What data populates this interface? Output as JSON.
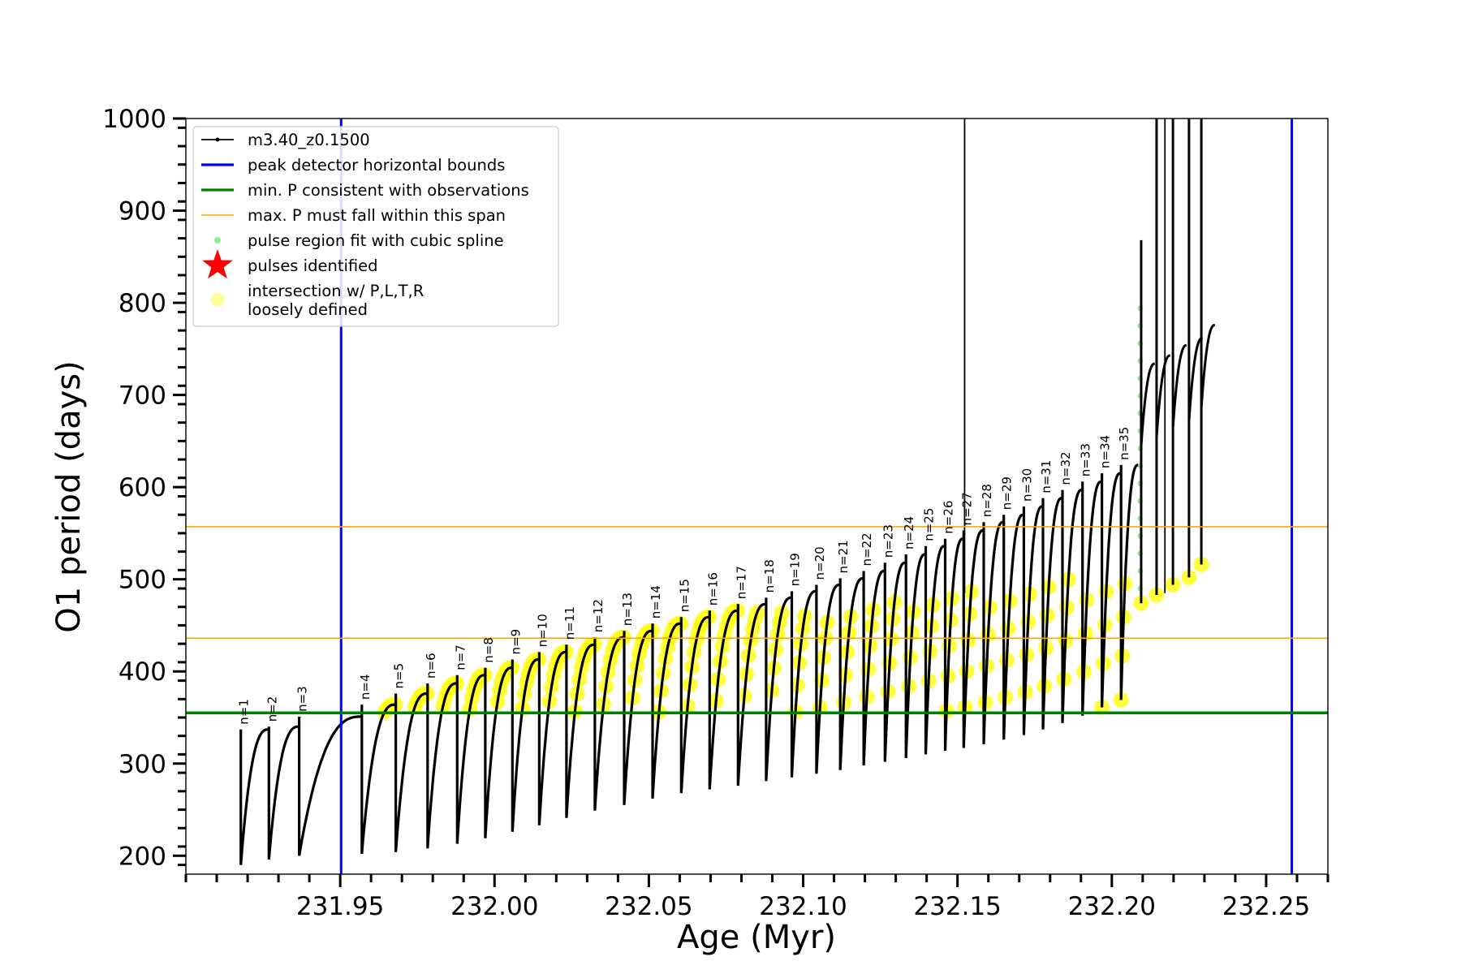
{
  "chart_data": {
    "type": "line",
    "xlabel": "Age (Myr)",
    "ylabel": "O1 period (days)",
    "xlim": [
      231.9,
      232.27
    ],
    "ylim": [
      180,
      1000
    ],
    "x_ticks_major": [
      231.95,
      232.0,
      232.05,
      232.1,
      232.15,
      232.2,
      232.25
    ],
    "x_tick_labels": [
      "231.95",
      "232.00",
      "232.05",
      "232.10",
      "232.15",
      "232.20",
      "232.25"
    ],
    "y_ticks_major": [
      200,
      300,
      400,
      500,
      600,
      700,
      800,
      900,
      1000
    ],
    "y_tick_labels": [
      "200",
      "300",
      "400",
      "500",
      "600",
      "700",
      "800",
      "900",
      "1000"
    ],
    "legend_position": "upper-left",
    "legend": [
      {
        "label": "m3.40_z0.1500",
        "kind": "line-marker",
        "color": "#000000"
      },
      {
        "label": "peak detector horizontal bounds",
        "kind": "line",
        "color": "#0000ff"
      },
      {
        "label": "min. P consistent with observations",
        "kind": "line",
        "color": "#008000"
      },
      {
        "label": "max. P must fall within this span",
        "kind": "line",
        "color": "#ffa500"
      },
      {
        "label": "pulse region fit with cubic spline",
        "kind": "dot",
        "color": "#90ee90"
      },
      {
        "label": "pulses identified",
        "kind": "star",
        "color": "#ff0000"
      },
      {
        "label": "intersection w/ P,L,T,R",
        "label2": "loosely defined",
        "kind": "circle",
        "color": "#fffe9a"
      }
    ],
    "vertical_lines": [
      {
        "x": 231.9503,
        "color": "#0000ff",
        "role": "peak detector horizontal bounds"
      },
      {
        "x": 232.2583,
        "color": "#0000ff",
        "role": "peak detector horizontal bounds"
      }
    ],
    "horizontal_lines": [
      {
        "y": 355,
        "color": "#008000",
        "role": "min. P consistent with observations"
      },
      {
        "y": 436,
        "color": "#ffa500",
        "role": "max. P span lower"
      },
      {
        "y": 557,
        "color": "#ffa500",
        "role": "max. P span upper"
      }
    ],
    "pulses": [
      {
        "n": 1,
        "age": 231.9178,
        "min_period": 190,
        "max_period": 337
      },
      {
        "n": 2,
        "age": 231.9269,
        "min_period": 196,
        "max_period": 340
      },
      {
        "n": 3,
        "age": 231.9367,
        "min_period": 200,
        "max_period": 351
      },
      {
        "n": 4,
        "age": 231.957,
        "min_period": 202,
        "max_period": 364
      },
      {
        "n": 5,
        "age": 231.968,
        "min_period": 204,
        "max_period": 376
      },
      {
        "n": 6,
        "age": 231.9783,
        "min_period": 208,
        "max_period": 387
      },
      {
        "n": 7,
        "age": 231.9879,
        "min_period": 213,
        "max_period": 396
      },
      {
        "n": 8,
        "age": 231.997,
        "min_period": 219,
        "max_period": 404
      },
      {
        "n": 9,
        "age": 232.0058,
        "min_period": 226,
        "max_period": 413
      },
      {
        "n": 10,
        "age": 232.0145,
        "min_period": 233,
        "max_period": 421
      },
      {
        "n": 11,
        "age": 232.0233,
        "min_period": 241,
        "max_period": 429
      },
      {
        "n": 12,
        "age": 232.0325,
        "min_period": 249,
        "max_period": 437
      },
      {
        "n": 13,
        "age": 232.042,
        "min_period": 255,
        "max_period": 444
      },
      {
        "n": 14,
        "age": 232.0512,
        "min_period": 262,
        "max_period": 452
      },
      {
        "n": 15,
        "age": 232.0605,
        "min_period": 268,
        "max_period": 459
      },
      {
        "n": 16,
        "age": 232.0697,
        "min_period": 272,
        "max_period": 466
      },
      {
        "n": 17,
        "age": 232.0789,
        "min_period": 276,
        "max_period": 473
      },
      {
        "n": 18,
        "age": 232.088,
        "min_period": 281,
        "max_period": 480
      },
      {
        "n": 19,
        "age": 232.0963,
        "min_period": 285,
        "max_period": 487
      },
      {
        "n": 20,
        "age": 232.1043,
        "min_period": 289,
        "max_period": 494
      },
      {
        "n": 21,
        "age": 232.112,
        "min_period": 293,
        "max_period": 501
      },
      {
        "n": 22,
        "age": 232.1196,
        "min_period": 298,
        "max_period": 509
      },
      {
        "n": 23,
        "age": 232.1265,
        "min_period": 302,
        "max_period": 518
      },
      {
        "n": 24,
        "age": 232.1333,
        "min_period": 306,
        "max_period": 527
      },
      {
        "n": 25,
        "age": 232.1397,
        "min_period": 310,
        "max_period": 536
      },
      {
        "n": 26,
        "age": 232.146,
        "min_period": 314,
        "max_period": 544
      },
      {
        "n": 27,
        "age": 232.152,
        "min_period": 317,
        "max_period": 553
      },
      {
        "n": 28,
        "age": 232.1585,
        "min_period": 321,
        "max_period": 562
      },
      {
        "n": 29,
        "age": 232.165,
        "min_period": 326,
        "max_period": 570
      },
      {
        "n": 30,
        "age": 232.1715,
        "min_period": 331,
        "max_period": 579
      },
      {
        "n": 31,
        "age": 232.1777,
        "min_period": 337,
        "max_period": 588
      },
      {
        "n": 32,
        "age": 232.184,
        "min_period": 344,
        "max_period": 597
      },
      {
        "n": 33,
        "age": 232.1905,
        "min_period": 352,
        "max_period": 606
      },
      {
        "n": 34,
        "age": 232.1968,
        "min_period": 361,
        "max_period": 615
      },
      {
        "n": 35,
        "age": 232.203,
        "min_period": 369,
        "max_period": 624
      }
    ]
  }
}
